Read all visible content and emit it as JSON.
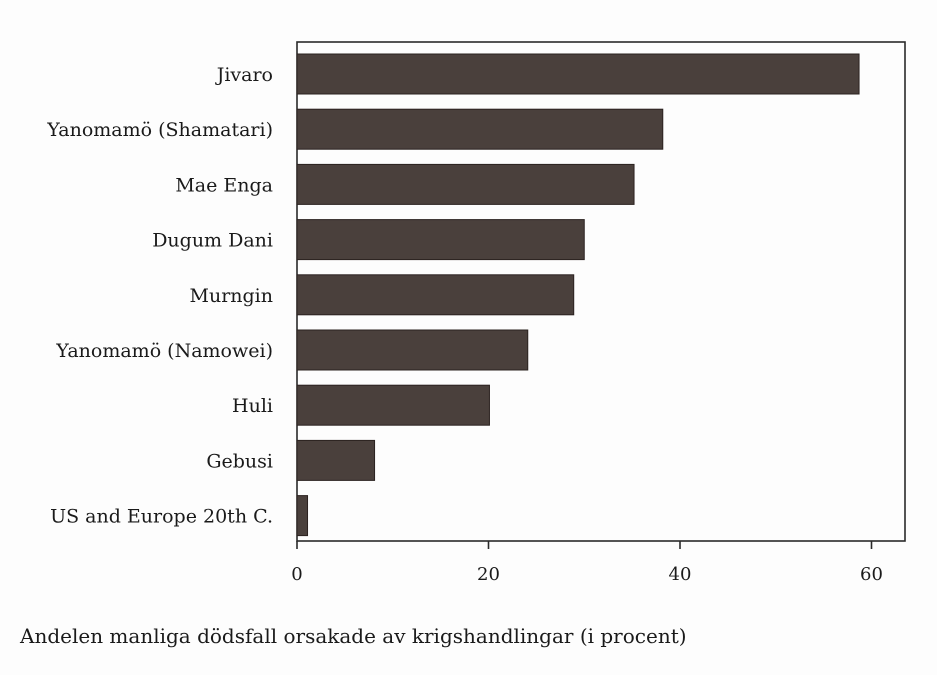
{
  "chart_data": {
    "type": "bar",
    "orientation": "horizontal",
    "categories": [
      "Jivaro",
      "Yanomamö (Shamatari)",
      "Mae Enga",
      "Dugum Dani",
      "Murngin",
      "Yanomamö (Namowei)",
      "Huli",
      "Gebusi",
      "US and Europe 20th C."
    ],
    "values": [
      58.7,
      38.2,
      35.2,
      30,
      28.9,
      24.1,
      20.1,
      8.1,
      1.1
    ],
    "xlabel": "Andelen manliga dödsfall orsakade av krigshandlingar (i procent)",
    "ylabel": "",
    "xlim": [
      0,
      63
    ],
    "xticks": [
      0,
      20,
      40,
      60
    ],
    "tick_labels": [
      "0",
      "20",
      "40",
      "60"
    ],
    "grid": false,
    "bar_color": "#4a403c"
  }
}
